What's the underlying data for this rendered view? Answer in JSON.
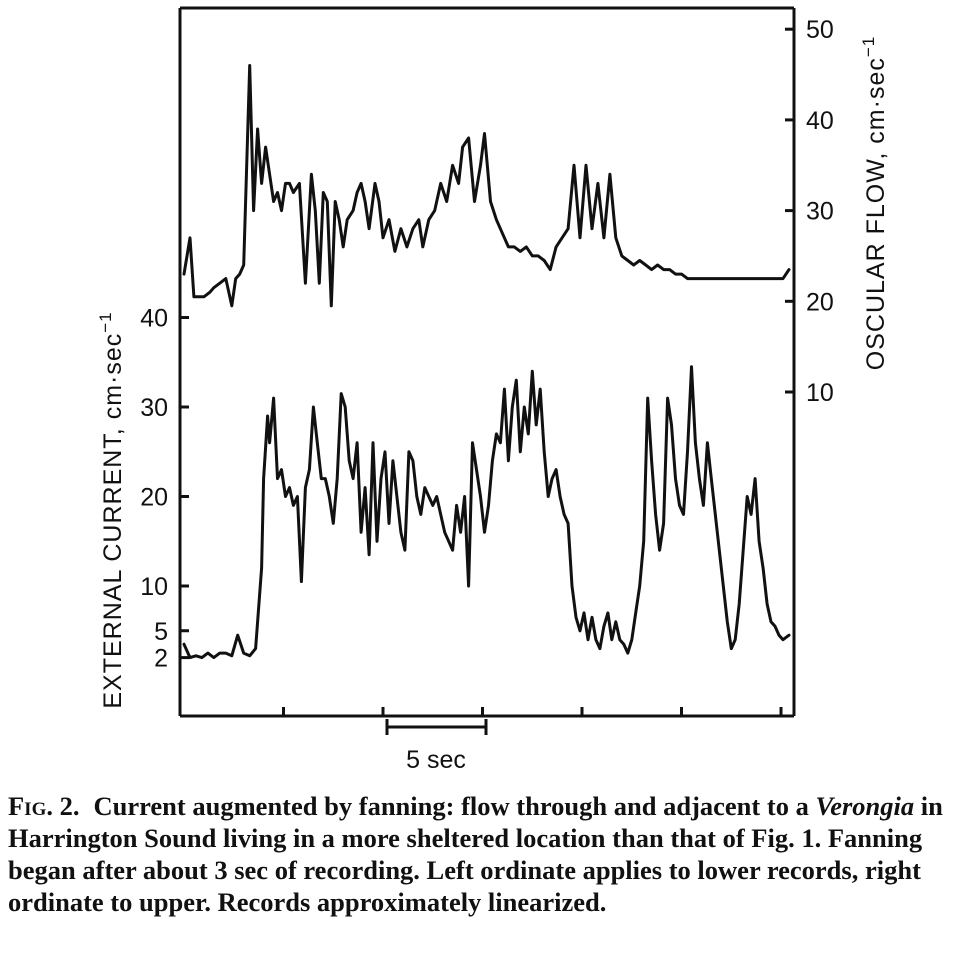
{
  "chart_data": {
    "type": "line",
    "time_scale_label": "5 sec",
    "left_axis": {
      "title": "EXTERNAL CURRENT, cm·sec",
      "title_superscript": "−1",
      "ticks": [
        2,
        5,
        10,
        20,
        30,
        40
      ],
      "applies_to": "lower"
    },
    "right_axis": {
      "title": "OSCULAR FLOW, cm·sec",
      "title_superscript": "−1",
      "ticks": [
        10,
        20,
        30,
        40,
        50
      ],
      "applies_to": "upper"
    },
    "series": [
      {
        "axis": "right",
        "x": [
          0,
          0.3,
          0.5,
          0.8,
          1.0,
          1.3,
          1.5,
          1.8,
          2.1,
          2.4,
          2.6,
          2.8,
          3.0,
          3.3,
          3.5,
          3.7,
          3.9,
          4.1,
          4.3,
          4.5,
          4.7,
          4.9,
          5.1,
          5.3,
          5.5,
          5.8,
          6.1,
          6.4,
          6.6,
          6.8,
          7.0,
          7.2,
          7.4,
          7.6,
          7.8,
          8.0,
          8.2,
          8.5,
          8.7,
          8.9,
          9.1,
          9.3,
          9.6,
          9.8,
          10.0,
          10.3,
          10.6,
          10.9,
          11.2,
          11.5,
          11.8,
          12.0,
          12.3,
          12.6,
          12.9,
          13.2,
          13.5,
          13.8,
          14.0,
          14.3,
          14.6,
          14.9,
          15.1,
          15.4,
          15.7,
          16.0,
          16.3,
          16.6,
          16.9,
          17.2,
          17.5,
          17.8,
          18.1,
          18.4,
          18.7,
          19.0,
          19.3,
          19.6,
          19.9,
          20.2,
          20.5,
          20.8,
          21.1,
          21.4,
          21.7,
          22.0,
          22.3,
          22.6,
          22.9,
          23.2,
          23.5,
          23.8,
          24.1,
          24.4,
          24.7,
          25.0,
          25.3,
          25.6,
          25.9,
          26.2,
          26.5,
          26.8,
          27.1,
          27.4,
          27.7,
          28.0,
          28.3,
          28.6,
          28.9,
          29.2,
          29.5,
          29.8,
          30.1,
          30.4
        ],
        "y": [
          23,
          27,
          20.5,
          20.5,
          20.5,
          21,
          21.5,
          22,
          22.5,
          19.5,
          22.5,
          23,
          24,
          46,
          30,
          39,
          33,
          37,
          34,
          31,
          32,
          30,
          33,
          33,
          32,
          33,
          22,
          34,
          30,
          22,
          32,
          31,
          19.5,
          31,
          29,
          26,
          29,
          30,
          32,
          33,
          31,
          28,
          33,
          31,
          27,
          29,
          25.5,
          28,
          26,
          28,
          29,
          26,
          29,
          30,
          33,
          31,
          35,
          33,
          37,
          38,
          31,
          35,
          38.5,
          31,
          29,
          27.5,
          26,
          26,
          25.5,
          26,
          25,
          25,
          24.5,
          23.5,
          26,
          27,
          28,
          35,
          27,
          35,
          28,
          33,
          27,
          34,
          27,
          25,
          24.5,
          24,
          24.5,
          24,
          23.5,
          24,
          23.5,
          23.5,
          23,
          23,
          22.5,
          22.5,
          22.5,
          22.5,
          22.5,
          22.5,
          22.5,
          22.5,
          22.5,
          22.5,
          22.5,
          22.5,
          22.5,
          22.5,
          22.5,
          22.5,
          22.5,
          23.5
        ]
      },
      {
        "axis": "left",
        "x": [
          0,
          0.3,
          0.6,
          0.9,
          1.2,
          1.5,
          1.8,
          2.1,
          2.4,
          2.7,
          3.0,
          3.3,
          3.6,
          3.9,
          4.0,
          4.2,
          4.3,
          4.5,
          4.7,
          4.9,
          5.1,
          5.3,
          5.5,
          5.7,
          5.9,
          6.1,
          6.3,
          6.5,
          6.7,
          6.9,
          7.1,
          7.3,
          7.5,
          7.7,
          7.9,
          8.1,
          8.3,
          8.5,
          8.7,
          8.9,
          9.1,
          9.3,
          9.5,
          9.7,
          9.9,
          10.1,
          10.3,
          10.5,
          10.7,
          10.9,
          11.1,
          11.3,
          11.5,
          11.7,
          11.9,
          12.1,
          12.3,
          12.5,
          12.7,
          12.9,
          13.1,
          13.3,
          13.5,
          13.7,
          13.9,
          14.1,
          14.3,
          14.5,
          14.7,
          14.9,
          15.1,
          15.3,
          15.5,
          15.7,
          15.9,
          16.1,
          16.3,
          16.5,
          16.7,
          16.9,
          17.1,
          17.3,
          17.5,
          17.7,
          17.9,
          18.1,
          18.3,
          18.5,
          18.7,
          18.9,
          19.1,
          19.3,
          19.5,
          19.7,
          19.9,
          20.1,
          20.3,
          20.5,
          20.7,
          20.9,
          21.1,
          21.3,
          21.5,
          21.7,
          21.9,
          22.1,
          22.3,
          22.5,
          22.7,
          22.9,
          23.1,
          23.3,
          23.5,
          23.7,
          23.9,
          24.1,
          24.3,
          24.5,
          24.7,
          24.9,
          25.1,
          25.3,
          25.5,
          25.7,
          25.9,
          26.1,
          26.3,
          26.5,
          26.7,
          26.9,
          27.1,
          27.3,
          27.5,
          27.7,
          27.9,
          28.1,
          28.3,
          28.5,
          28.7,
          28.9,
          29.1,
          29.3,
          29.5,
          29.7,
          29.9,
          30.1,
          30.4
        ],
        "y": [
          3.5,
          2,
          2.2,
          2,
          2.5,
          2,
          2.5,
          2.5,
          2.2,
          4.5,
          2.5,
          2.2,
          3,
          12,
          22,
          29,
          26,
          31,
          22,
          23,
          20,
          21,
          19,
          20,
          10.5,
          21,
          23,
          30,
          26,
          22,
          22,
          20,
          17,
          22,
          31.5,
          30,
          24,
          22,
          26,
          16,
          21,
          13.5,
          26,
          15,
          22,
          25,
          17,
          24,
          20,
          16,
          14,
          25,
          24,
          20,
          18,
          21,
          20,
          19,
          20,
          18,
          16,
          15,
          14,
          19,
          16,
          20,
          10,
          26,
          23,
          20,
          16,
          19,
          24,
          27,
          26,
          32,
          24,
          30,
          33,
          25,
          30,
          27,
          34,
          28,
          32,
          25,
          20,
          22,
          23,
          20,
          18,
          17,
          10,
          6.5,
          5,
          7,
          4,
          6.5,
          4,
          3,
          5.5,
          7,
          4,
          6,
          4,
          3.5,
          2.5,
          4,
          7,
          10,
          15,
          31,
          24,
          18,
          14,
          17,
          31,
          28,
          22,
          19,
          18,
          25,
          34.5,
          26,
          22,
          19,
          26,
          22,
          18,
          14,
          10,
          6,
          3,
          4,
          8,
          14,
          20,
          18,
          22,
          15,
          12,
          8,
          6,
          5.5,
          4.5,
          4,
          4.5
        ]
      }
    ]
  },
  "caption": {
    "label": "Fig. 2.",
    "text_before": "Current augmented by fanning: flow through and adjacent to a ",
    "taxon": "Verongia",
    "text_after": " in Harrington Sound living in a more sheltered location than that of Fig. 1. Fanning began after about 3 sec of recording. Left ordinate applies to lower records, right ordinate to upper. Records approximately linearized."
  }
}
